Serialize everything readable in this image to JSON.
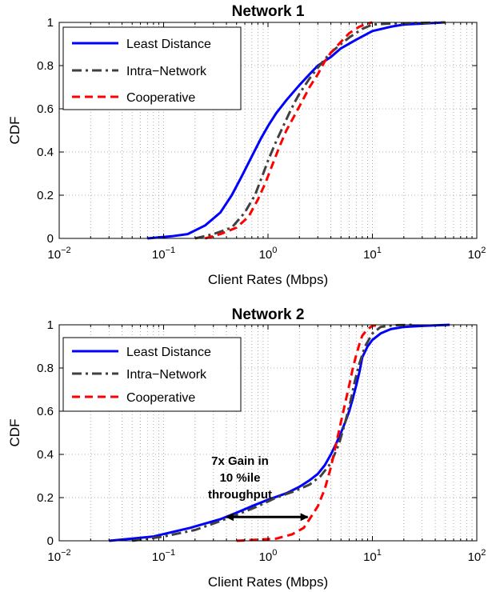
{
  "chart_data": [
    {
      "type": "line",
      "title": "Network 1",
      "xlabel": "Client Rates (Mbps)",
      "ylabel": "CDF",
      "xscale": "log",
      "xlim": [
        0.01,
        100
      ],
      "ylim": [
        0,
        1
      ],
      "grid": true,
      "legend": "top-left",
      "xticks": [
        {
          "base": "10",
          "exp": "−2"
        },
        {
          "base": "10",
          "exp": "−1"
        },
        {
          "base": "10",
          "exp": "0"
        },
        {
          "base": "10",
          "exp": "1"
        },
        {
          "base": "10",
          "exp": "2"
        }
      ],
      "yticks": [
        "0",
        "0.2",
        "0.4",
        "0.6",
        "0.8",
        "1"
      ],
      "series": [
        {
          "name": "Least Distance",
          "color": "#0000ff",
          "style": "solid",
          "x": [
            0.07,
            0.12,
            0.17,
            0.25,
            0.35,
            0.45,
            0.55,
            0.7,
            0.85,
            1.0,
            1.2,
            1.5,
            2.0,
            2.5,
            3.0,
            4.0,
            5.0,
            7.0,
            10.0,
            15.0,
            20.0,
            50.0
          ],
          "y": [
            0,
            0.01,
            0.02,
            0.06,
            0.12,
            0.2,
            0.28,
            0.38,
            0.46,
            0.52,
            0.58,
            0.64,
            0.71,
            0.76,
            0.8,
            0.84,
            0.88,
            0.92,
            0.96,
            0.98,
            0.99,
            1.0
          ]
        },
        {
          "name": "Intra−Network",
          "color": "#404040",
          "style": "dashdot",
          "x": [
            0.2,
            0.3,
            0.45,
            0.6,
            0.75,
            0.9,
            1.0,
            1.2,
            1.4,
            1.6,
            1.8,
            2.0,
            2.5,
            3.0,
            3.5,
            4.0,
            5.0,
            6.0,
            8.0,
            10.0,
            15.0,
            50.0
          ],
          "y": [
            0,
            0.02,
            0.05,
            0.12,
            0.2,
            0.3,
            0.36,
            0.45,
            0.52,
            0.58,
            0.63,
            0.67,
            0.74,
            0.79,
            0.83,
            0.86,
            0.9,
            0.93,
            0.97,
            0.99,
            0.995,
            1.0
          ]
        },
        {
          "name": "Cooperative",
          "color": "#ff0000",
          "style": "dashed",
          "x": [
            0.25,
            0.35,
            0.5,
            0.65,
            0.8,
            0.95,
            1.1,
            1.3,
            1.5,
            1.8,
            2.1,
            2.5,
            3.0,
            3.5,
            4.0,
            5.0,
            6.0,
            7.5,
            9.0,
            10.0
          ],
          "y": [
            0,
            0.02,
            0.05,
            0.1,
            0.18,
            0.26,
            0.34,
            0.43,
            0.5,
            0.57,
            0.63,
            0.7,
            0.76,
            0.82,
            0.86,
            0.91,
            0.95,
            0.98,
            0.995,
            1.0
          ]
        }
      ]
    },
    {
      "type": "line",
      "title": "Network 2",
      "xlabel": "Client Rates (Mbps)",
      "ylabel": "CDF",
      "xscale": "log",
      "xlim": [
        0.01,
        100
      ],
      "ylim": [
        0,
        1
      ],
      "grid": true,
      "legend": "top-left",
      "xticks": [
        {
          "base": "10",
          "exp": "−2"
        },
        {
          "base": "10",
          "exp": "−1"
        },
        {
          "base": "10",
          "exp": "0"
        },
        {
          "base": "10",
          "exp": "1"
        },
        {
          "base": "10",
          "exp": "2"
        }
      ],
      "yticks": [
        "0",
        "0.2",
        "0.4",
        "0.6",
        "0.8",
        "1"
      ],
      "annotation": {
        "lines": [
          "7x Gain in",
          "10 %ile",
          "throughput"
        ],
        "from": [
          0.4,
          0.11
        ],
        "to": [
          2.4,
          0.11
        ]
      },
      "series": [
        {
          "name": "Least Distance",
          "color": "#0000ff",
          "style": "solid",
          "x": [
            0.03,
            0.05,
            0.08,
            0.12,
            0.18,
            0.25,
            0.35,
            0.5,
            0.7,
            1.0,
            1.5,
            2.0,
            2.5,
            3.0,
            3.5,
            4.0,
            4.5,
            5.0,
            5.5,
            6.0,
            6.5,
            7.0,
            7.5,
            8.0,
            9.0,
            10.0,
            12.0,
            15.0,
            20.0,
            30.0,
            55.0
          ],
          "y": [
            0,
            0.01,
            0.02,
            0.04,
            0.06,
            0.08,
            0.1,
            0.13,
            0.16,
            0.19,
            0.22,
            0.25,
            0.28,
            0.31,
            0.35,
            0.4,
            0.45,
            0.5,
            0.55,
            0.6,
            0.66,
            0.72,
            0.78,
            0.85,
            0.9,
            0.93,
            0.96,
            0.98,
            0.99,
            0.995,
            1.0
          ]
        },
        {
          "name": "Intra−Network",
          "color": "#404040",
          "style": "dashdot",
          "x": [
            0.05,
            0.1,
            0.2,
            0.3,
            0.5,
            0.8,
            1.2,
            1.8,
            2.5,
            3.2,
            4.0,
            4.8,
            5.5,
            6.2,
            6.8,
            7.5,
            8.5,
            10.0,
            12.0,
            16.0,
            25.0
          ],
          "y": [
            0,
            0.02,
            0.05,
            0.08,
            0.12,
            0.16,
            0.2,
            0.23,
            0.26,
            0.3,
            0.36,
            0.45,
            0.55,
            0.65,
            0.74,
            0.82,
            0.9,
            0.96,
            0.99,
            0.998,
            1.0
          ]
        },
        {
          "name": "Cooperative",
          "color": "#ff0000",
          "style": "dashed",
          "x": [
            0.5,
            0.8,
            1.2,
            1.7,
            2.2,
            2.5,
            3.0,
            3.5,
            4.0,
            4.5,
            5.0,
            5.5,
            6.0,
            6.5,
            7.0,
            7.5,
            8.0,
            9.0,
            10.0,
            12.0
          ],
          "y": [
            0,
            0.005,
            0.01,
            0.03,
            0.06,
            0.1,
            0.16,
            0.24,
            0.34,
            0.45,
            0.55,
            0.64,
            0.72,
            0.8,
            0.86,
            0.91,
            0.95,
            0.98,
            0.995,
            1.0
          ]
        }
      ]
    }
  ]
}
